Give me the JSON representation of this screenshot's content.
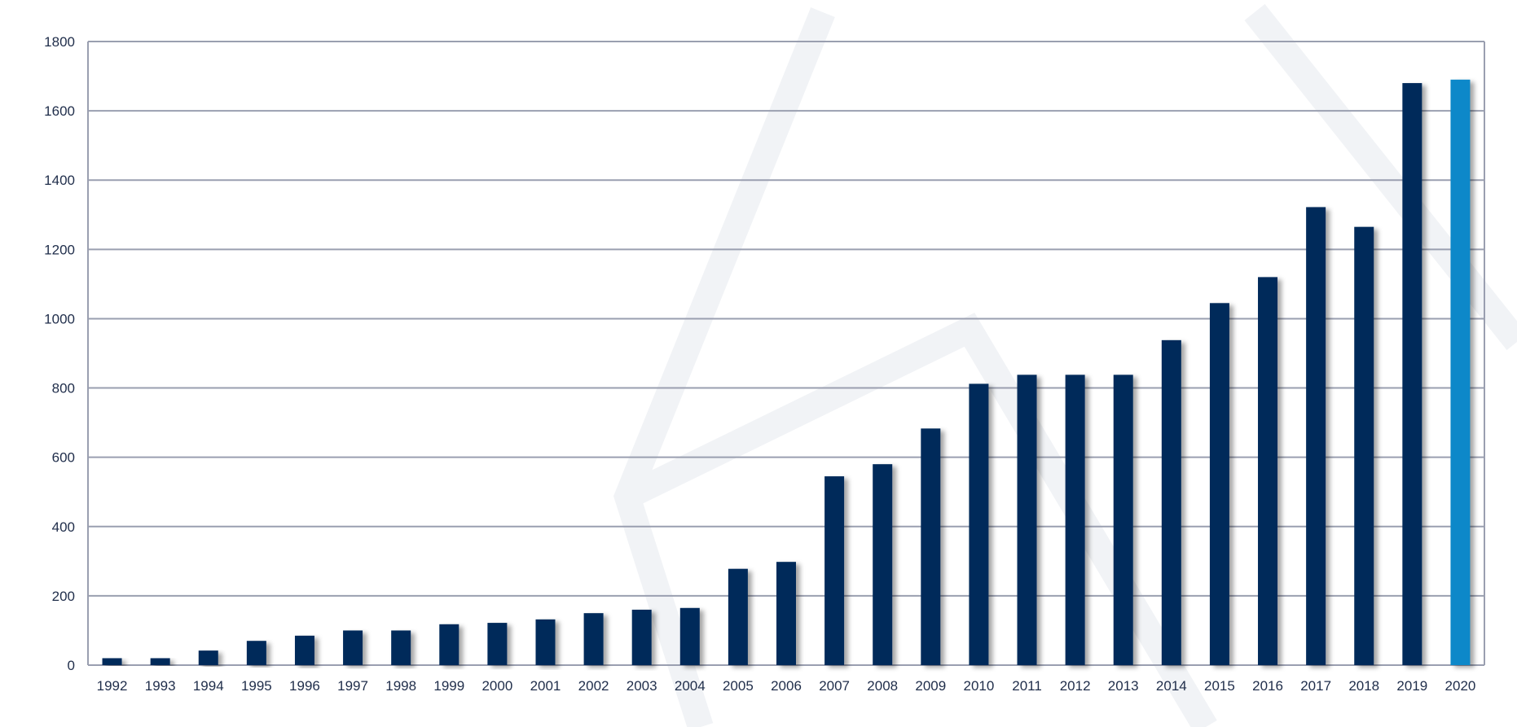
{
  "chart_data": {
    "type": "bar",
    "title": "",
    "xlabel": "",
    "ylabel": "",
    "categories": [
      "1992",
      "1993",
      "1994",
      "1995",
      "1996",
      "1997",
      "1998",
      "1999",
      "2000",
      "2001",
      "2002",
      "2003",
      "2004",
      "2005",
      "2006",
      "2007",
      "2008",
      "2009",
      "2010",
      "2011",
      "2012",
      "2013",
      "2014",
      "2015",
      "2016",
      "2017",
      "2018",
      "2019",
      "2020"
    ],
    "values": [
      20,
      20,
      42,
      70,
      85,
      100,
      100,
      118,
      122,
      132,
      150,
      160,
      165,
      278,
      298,
      545,
      580,
      683,
      812,
      838,
      838,
      838,
      938,
      1045,
      1120,
      1322,
      1265,
      1680,
      1690
    ],
    "ylim": [
      0,
      1800
    ],
    "yticks": [
      0,
      200,
      400,
      600,
      800,
      1000,
      1200,
      1400,
      1600,
      1800
    ],
    "grid": true,
    "legend": "none",
    "colors": {
      "bar": "#052a5a",
      "highlight_bar": "#0f88c9",
      "highlight_category": "2020",
      "grid": "#9a9fb0",
      "text": "#1f2d4a",
      "watermark": "#eef0f4"
    }
  }
}
